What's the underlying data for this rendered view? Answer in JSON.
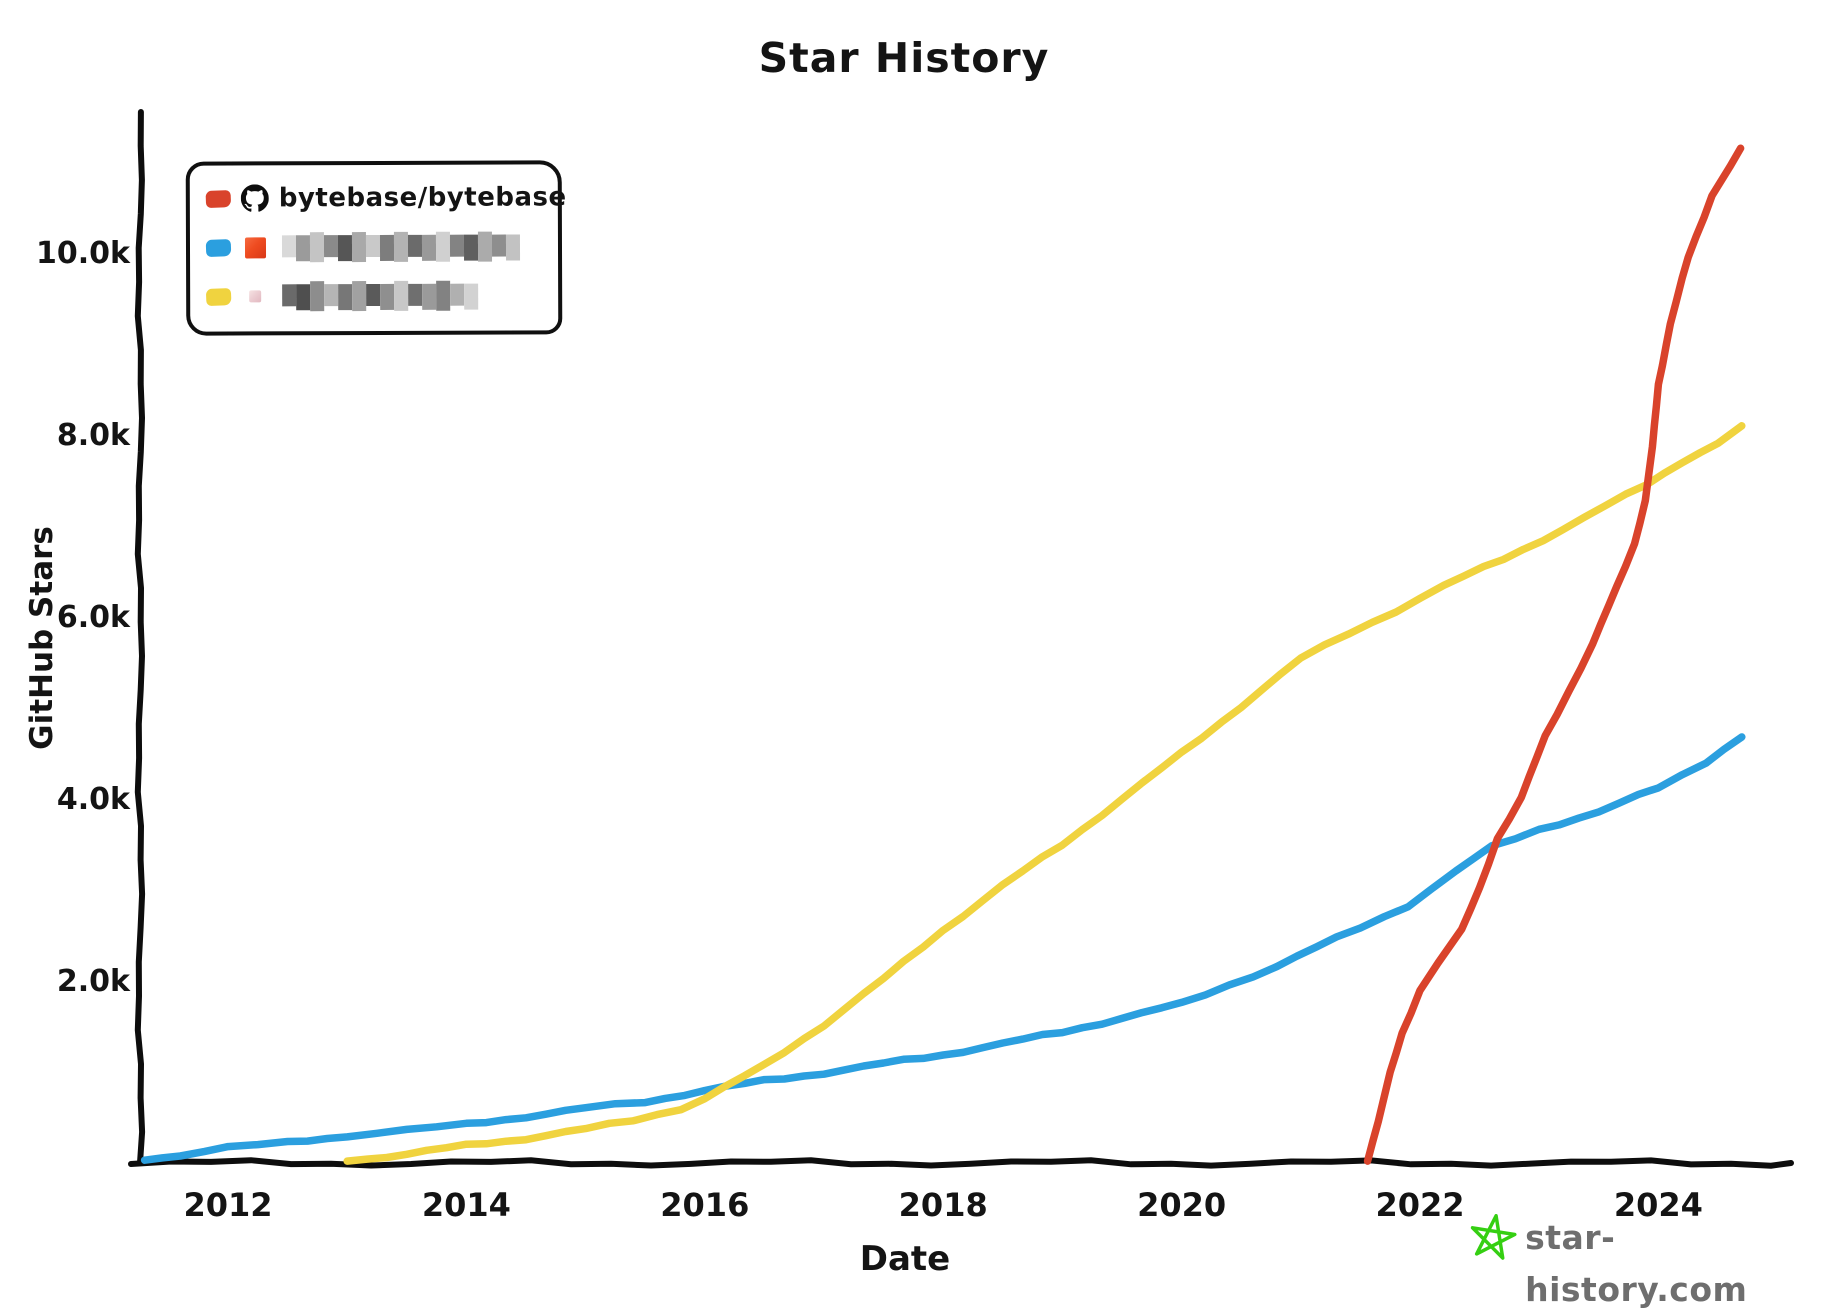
{
  "title": "Star History",
  "legend": {
    "items": [
      {
        "label": "bytebase/bytebase",
        "blurred": false,
        "swatch_color": "#d9432b",
        "icon": "github-octocat-icon",
        "icon_color": "#0d0d0d"
      },
      {
        "label": "",
        "blurred": true,
        "swatch_color": "#2b9fdf",
        "icon": "orange-square-avatar",
        "avatar_colors": [
          "#f66a40",
          "#ee4b20",
          "#d83817"
        ],
        "mosaic": [
          "#d9d9d9",
          "#9b9b9b",
          "#c4c4c4",
          "#8a8a8a",
          "#565656",
          "#a9a9a9",
          "#c9c9c9",
          "#7d7d7d",
          "#b3b3b3",
          "#6b6b6b",
          "#999999",
          "#d0d0d0",
          "#838383",
          "#5f5f5f",
          "#ababab",
          "#8e8e8e",
          "#c2c2c2"
        ]
      },
      {
        "label": "",
        "blurred": true,
        "swatch_color": "#f0d33f",
        "icon": "pink-square-avatar",
        "avatar_colors": [
          "#f6e3e3",
          "#eccdd2",
          "#e2b8c0"
        ],
        "mosaic": [
          "#6a6a6a",
          "#4f4f4f",
          "#8d8d8d",
          "#b5b5b5",
          "#777777",
          "#a1a1a1",
          "#5a5a5a",
          "#8f8f8f",
          "#c7c7c7",
          "#6f6f6f",
          "#9a9a9a",
          "#828282",
          "#b0b0b0",
          "#d2d2d2"
        ]
      }
    ]
  },
  "footer": {
    "brand": "star-history.com",
    "star_icon_color": "#35cf12"
  },
  "chart_data": {
    "type": "line",
    "title": "Star History",
    "xlabel": "Date",
    "ylabel": "GitHub Stars",
    "grid": false,
    "legend_position": "top-left",
    "xlim": [
      2011.3,
      2025.1
    ],
    "ylim": [
      0,
      11600
    ],
    "x_ticks": [
      2012,
      2014,
      2016,
      2018,
      2020,
      2022,
      2024
    ],
    "y_ticks": [
      {
        "stars": 2000,
        "label": "2.0k"
      },
      {
        "stars": 4000,
        "label": "4.0k"
      },
      {
        "stars": 6000,
        "label": "6.0k"
      },
      {
        "stars": 8000,
        "label": "8.0k"
      },
      {
        "stars": 10000,
        "label": "10.0k"
      }
    ],
    "series": [
      {
        "name": "bytebase/bytebase",
        "color": "#d9432b",
        "z": 3,
        "points": [
          [
            2021.56,
            10
          ],
          [
            2021.65,
            460
          ],
          [
            2021.75,
            980
          ],
          [
            2021.85,
            1400
          ],
          [
            2022.0,
            1890
          ],
          [
            2022.15,
            2200
          ],
          [
            2022.35,
            2550
          ],
          [
            2022.5,
            3000
          ],
          [
            2022.65,
            3560
          ],
          [
            2022.85,
            4010
          ],
          [
            2023.05,
            4670
          ],
          [
            2023.25,
            5180
          ],
          [
            2023.45,
            5700
          ],
          [
            2023.65,
            6310
          ],
          [
            2023.8,
            6800
          ],
          [
            2023.89,
            7270
          ],
          [
            2023.95,
            7850
          ],
          [
            2024.0,
            8550
          ],
          [
            2024.1,
            9200
          ],
          [
            2024.25,
            9950
          ],
          [
            2024.45,
            10620
          ],
          [
            2024.6,
            10930
          ],
          [
            2024.69,
            11140
          ]
        ]
      },
      {
        "name": "blurred-repo-blue",
        "color": "#2b9fdf",
        "z": 1,
        "points": [
          [
            2011.3,
            20
          ],
          [
            2011.6,
            80
          ],
          [
            2012,
            160
          ],
          [
            2012.5,
            210
          ],
          [
            2013,
            290
          ],
          [
            2013.5,
            350
          ],
          [
            2014,
            410
          ],
          [
            2014.5,
            500
          ],
          [
            2015,
            590
          ],
          [
            2015.5,
            660
          ],
          [
            2016,
            790
          ],
          [
            2016.5,
            890
          ],
          [
            2017,
            980
          ],
          [
            2017.5,
            1080
          ],
          [
            2018,
            1180
          ],
          [
            2018.5,
            1300
          ],
          [
            2019,
            1430
          ],
          [
            2019.5,
            1580
          ],
          [
            2020,
            1740
          ],
          [
            2020.4,
            1950
          ],
          [
            2020.8,
            2150
          ],
          [
            2021.3,
            2460
          ],
          [
            2021.9,
            2820
          ],
          [
            2022.3,
            3190
          ],
          [
            2022.6,
            3460
          ],
          [
            2023,
            3660
          ],
          [
            2023.5,
            3840
          ],
          [
            2024,
            4120
          ],
          [
            2024.4,
            4400
          ],
          [
            2024.7,
            4670
          ]
        ]
      },
      {
        "name": "blurred-repo-yellow",
        "color": "#f0d33f",
        "z": 2,
        "points": [
          [
            2013.0,
            10
          ],
          [
            2013.5,
            90
          ],
          [
            2014,
            180
          ],
          [
            2014.5,
            260
          ],
          [
            2015,
            360
          ],
          [
            2015.4,
            460
          ],
          [
            2015.8,
            590
          ],
          [
            2016,
            700
          ],
          [
            2016.5,
            1060
          ],
          [
            2017,
            1510
          ],
          [
            2017.5,
            2010
          ],
          [
            2018,
            2550
          ],
          [
            2018.5,
            3040
          ],
          [
            2019,
            3490
          ],
          [
            2019.5,
            3990
          ],
          [
            2020,
            4490
          ],
          [
            2020.5,
            5010
          ],
          [
            2021,
            5530
          ],
          [
            2021.4,
            5810
          ],
          [
            2021.8,
            6060
          ],
          [
            2022.2,
            6330
          ],
          [
            2022.7,
            6630
          ],
          [
            2023.2,
            6950
          ],
          [
            2023.9,
            7450
          ],
          [
            2024.2,
            7700
          ],
          [
            2024.5,
            7890
          ],
          [
            2024.7,
            8090
          ]
        ]
      }
    ]
  }
}
